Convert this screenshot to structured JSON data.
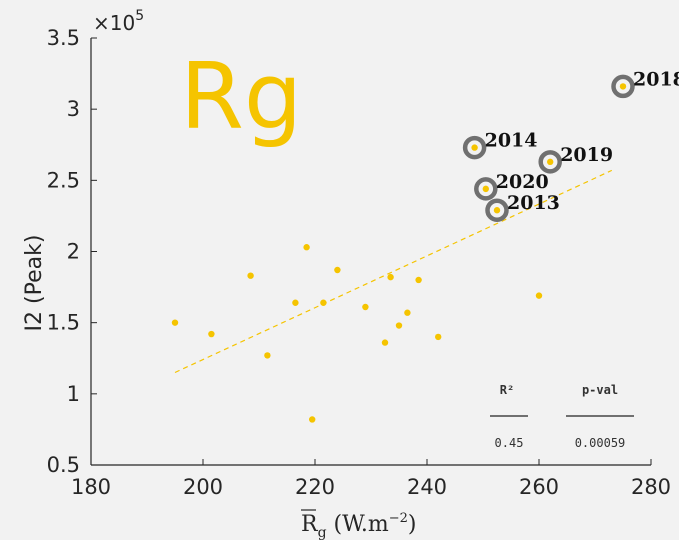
{
  "panel_label": "Rg",
  "colors": {
    "marker": "#f5c400",
    "ring": "#707070",
    "fit": "#f5c400",
    "axis": "#262626"
  },
  "chart_data": {
    "type": "scatter",
    "xlabel_main": "R",
    "xlabel_sub": "g",
    "xlabel_unit": " (W.m",
    "xlabel_exp": "−2",
    "xlabel_close": ")",
    "ylabel": "I2 (Peak)",
    "y_exponent_base": "×10",
    "y_exponent_power": "5",
    "xlim": [
      180,
      280
    ],
    "ylim": [
      0.5,
      3.5
    ],
    "xticks": [
      180,
      200,
      220,
      240,
      260,
      280
    ],
    "yticks": [
      0.5,
      1,
      1.5,
      2,
      2.5,
      3,
      3.5
    ],
    "points": [
      {
        "x": 195.0,
        "y": 1.5
      },
      {
        "x": 201.5,
        "y": 1.42
      },
      {
        "x": 208.5,
        "y": 1.83
      },
      {
        "x": 211.5,
        "y": 1.27
      },
      {
        "x": 216.5,
        "y": 1.64
      },
      {
        "x": 218.5,
        "y": 2.03
      },
      {
        "x": 219.5,
        "y": 0.82
      },
      {
        "x": 221.5,
        "y": 1.64
      },
      {
        "x": 224.0,
        "y": 1.87
      },
      {
        "x": 229.0,
        "y": 1.61
      },
      {
        "x": 232.5,
        "y": 1.36
      },
      {
        "x": 233.5,
        "y": 1.82
      },
      {
        "x": 235.0,
        "y": 1.48
      },
      {
        "x": 236.5,
        "y": 1.57
      },
      {
        "x": 238.5,
        "y": 1.8
      },
      {
        "x": 242.0,
        "y": 1.4
      },
      {
        "x": 260.0,
        "y": 1.69
      }
    ],
    "highlighted": [
      {
        "x": 248.5,
        "y": 2.73,
        "label": "2014"
      },
      {
        "x": 250.5,
        "y": 2.44,
        "label": "2020"
      },
      {
        "x": 252.5,
        "y": 2.29,
        "label": "2013"
      },
      {
        "x": 262.0,
        "y": 2.63,
        "label": "2019"
      },
      {
        "x": 275.0,
        "y": 3.16,
        "label": "2018"
      }
    ],
    "fit_line": {
      "x": [
        195,
        273
      ],
      "y": [
        1.15,
        2.57
      ],
      "style": "dashed"
    },
    "stats": {
      "headers": [
        "R²",
        "p-val"
      ],
      "values": [
        "0.45",
        "0.00059"
      ]
    }
  }
}
